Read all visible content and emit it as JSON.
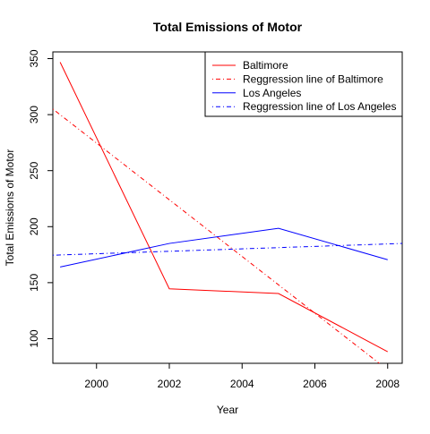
{
  "chart_data": {
    "type": "line",
    "title": "Total Emissions of Motor",
    "xlabel": "Year",
    "ylabel": "Total Emissions of Motor",
    "xlim": [
      1998.8,
      2008.4
    ],
    "ylim": [
      78,
      356
    ],
    "x_ticks": [
      2000,
      2002,
      2004,
      2006,
      2008
    ],
    "y_ticks": [
      100,
      150,
      200,
      250,
      300,
      350
    ],
    "grid": false,
    "legend_position": "top-right",
    "series": [
      {
        "name": "Baltimore",
        "style": "solid",
        "color": "#ff0000",
        "x": [
          1999,
          2002,
          2005,
          2008
        ],
        "y": [
          346.8,
          144.5,
          140.3,
          88.3
        ]
      },
      {
        "name": "Reggression line of Baltimore",
        "style": "dotdash",
        "color": "#ff0000",
        "x": [
          1998.8,
          2008.4
        ],
        "y": [
          305,
          62
        ]
      },
      {
        "name": "Los Angeles",
        "style": "solid",
        "color": "#0000ff",
        "x": [
          1999,
          2002,
          2005,
          2008
        ],
        "y": [
          164,
          185,
          198.5,
          170.5
        ]
      },
      {
        "name": "Reggression line of Los Angeles",
        "style": "dotdash",
        "color": "#0000ff",
        "x": [
          1998.8,
          2008.4
        ],
        "y": [
          174.5,
          185
        ]
      }
    ]
  }
}
